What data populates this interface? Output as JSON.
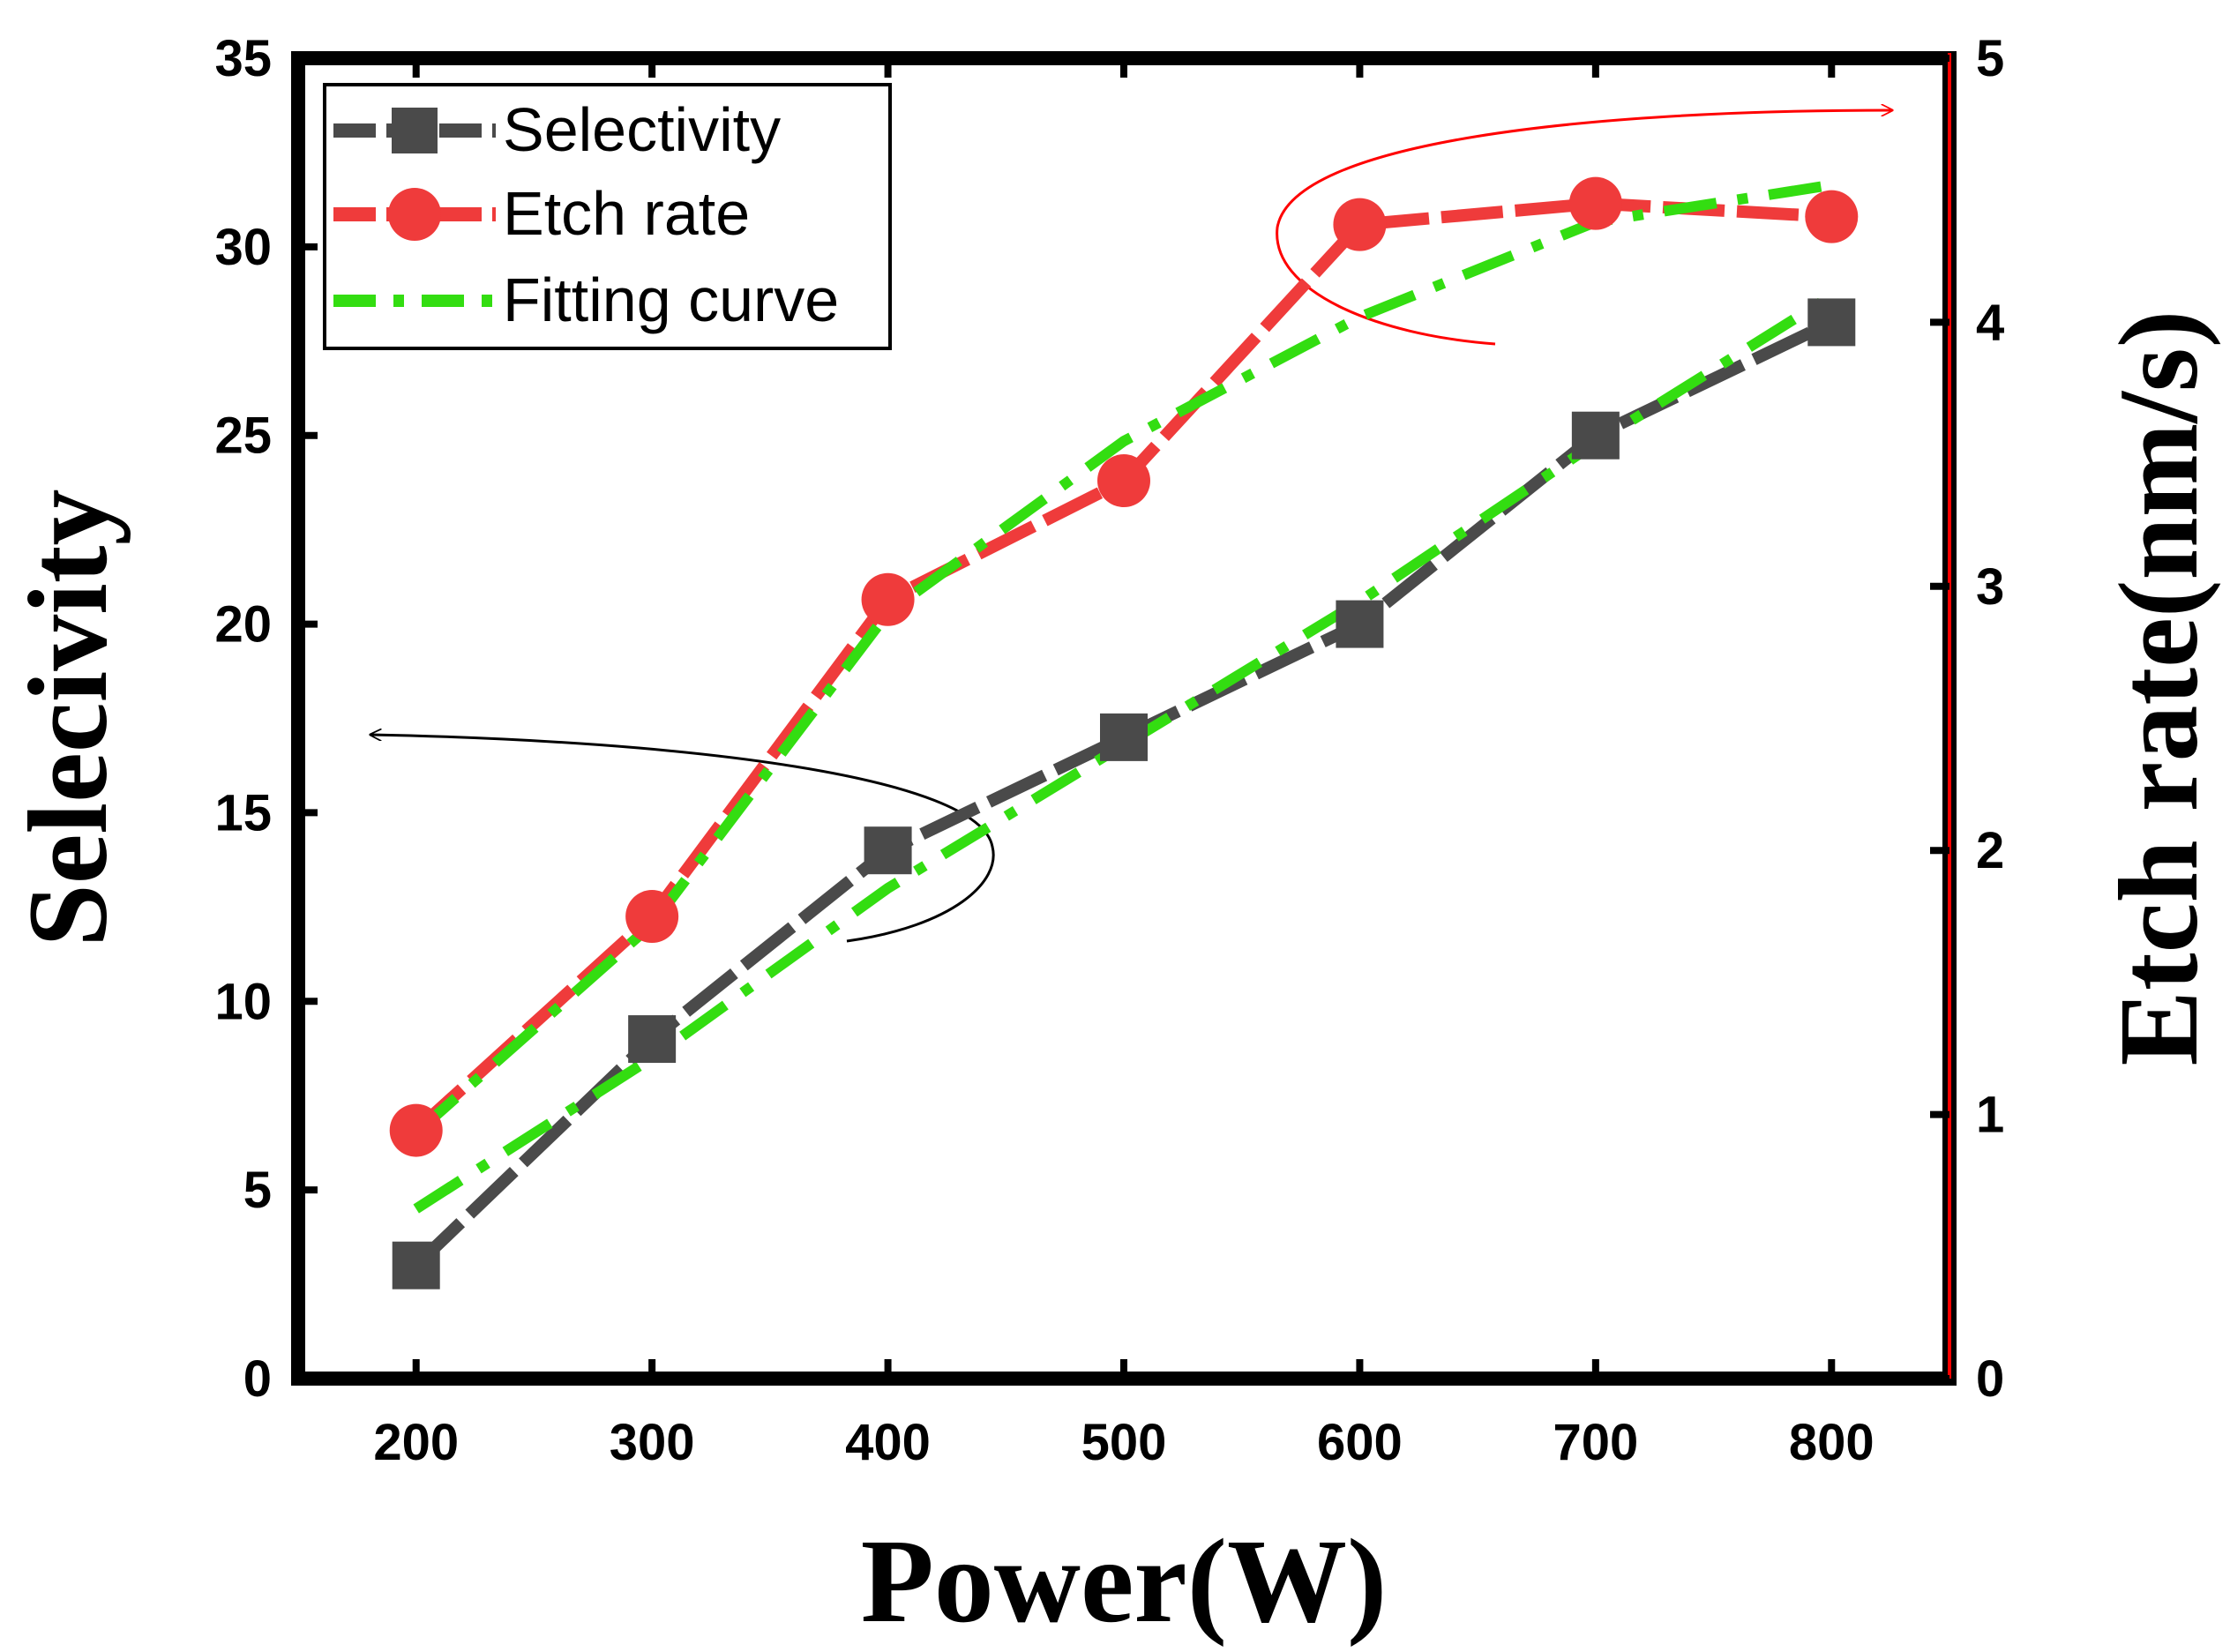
{
  "chart_data": {
    "type": "line",
    "x": [
      200,
      300,
      400,
      500,
      600,
      700,
      800
    ],
    "xlabel": "Power(W)",
    "xlim": [
      150,
      850
    ],
    "xticks": [
      200,
      300,
      400,
      500,
      600,
      700,
      800
    ],
    "ylabel_left": "Selecivity",
    "ylim_left": [
      0,
      35
    ],
    "yticks_left": [
      0,
      5,
      10,
      15,
      20,
      25,
      30,
      35
    ],
    "ylabel_right": "Etch rate(nm/s)",
    "ylim_right": [
      0,
      5
    ],
    "yticks_right": [
      0,
      1,
      2,
      3,
      4,
      5
    ],
    "series": [
      {
        "name": "Selectivity",
        "axis": "left",
        "color": "#4a4a4a",
        "marker": "square",
        "values": [
          3,
          9,
          14,
          17,
          20,
          25,
          28
        ]
      },
      {
        "name": "Etch rate",
        "axis": "right",
        "color": "#ef3b3b",
        "marker": "circle",
        "values": [
          0.94,
          1.75,
          2.95,
          3.4,
          4.37,
          4.45,
          4.4
        ]
      }
    ],
    "fits": [
      {
        "name": "Fitting curve",
        "axis": "left",
        "color": "#33dd11",
        "x": [
          200,
          300,
          400,
          500,
          600,
          700,
          800
        ],
        "values": [
          4.5,
          8.5,
          13.0,
          16.8,
          20.6,
          24.8,
          28.7
        ]
      },
      {
        "name": "Fitting curve",
        "axis": "right",
        "color": "#33dd11",
        "x": [
          200,
          300,
          400,
          500,
          600,
          700,
          800
        ],
        "values": [
          0.93,
          1.72,
          2.9,
          3.55,
          4.02,
          4.38,
          4.52
        ]
      }
    ],
    "legend": {
      "position": "top-left",
      "entries": [
        "Selectivity",
        "Etch rate",
        "Fitting curve"
      ]
    },
    "annotations": [
      {
        "type": "arrow",
        "direction": "left",
        "color": "#000000",
        "meaning": "Selectivity uses left axis"
      },
      {
        "type": "arrow",
        "direction": "right",
        "color": "#ff0000",
        "meaning": "Etch rate uses right axis"
      }
    ]
  }
}
